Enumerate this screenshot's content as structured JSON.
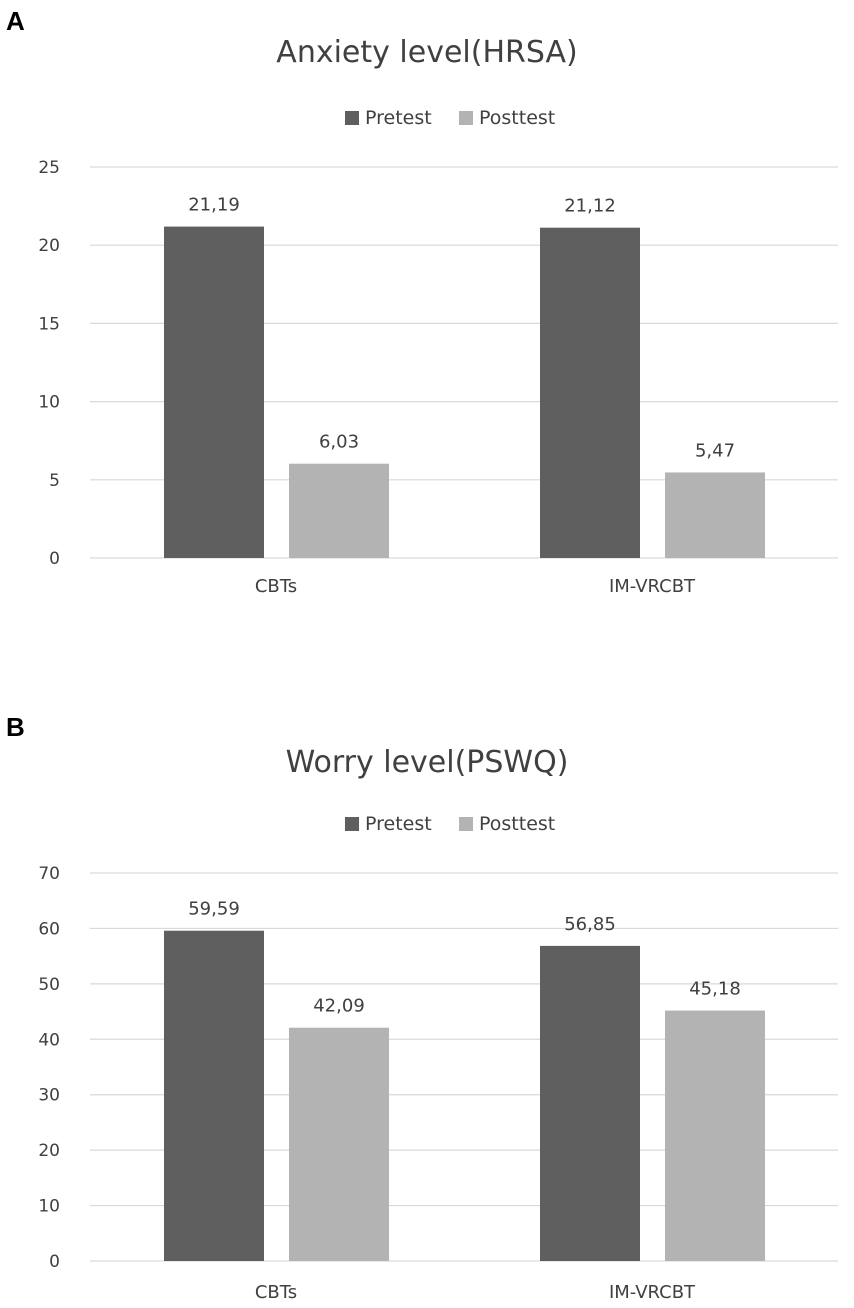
{
  "panels": [
    {
      "label": "A"
    },
    {
      "label": "B"
    }
  ],
  "colors": {
    "pretest": "#5f5f5f",
    "posttest": "#b3b3b3",
    "grid": "#d9d9d9",
    "text": "#404040"
  },
  "chart_data": [
    {
      "type": "bar",
      "title": "Anxiety level(HRSA)",
      "categories": [
        "CBTs",
        "IM-VRCBT"
      ],
      "series": [
        {
          "name": "Pretest",
          "values": [
            21.19,
            21.12
          ],
          "labels": [
            "21,19",
            "21,12"
          ]
        },
        {
          "name": "Posttest",
          "values": [
            6.03,
            5.47
          ],
          "labels": [
            "6,03",
            "5,47"
          ]
        }
      ],
      "ylim": [
        0,
        25
      ],
      "yticks": [
        0,
        5,
        10,
        15,
        20,
        25
      ],
      "legend": "top-center",
      "grid": true,
      "xlabel": "",
      "ylabel": ""
    },
    {
      "type": "bar",
      "title": "Worry level(PSWQ)",
      "categories": [
        "CBTs",
        "IM-VRCBT"
      ],
      "series": [
        {
          "name": "Pretest",
          "values": [
            59.59,
            56.85
          ],
          "labels": [
            "59,59",
            "56,85"
          ]
        },
        {
          "name": "Posttest",
          "values": [
            42.09,
            45.18
          ],
          "labels": [
            "42,09",
            "45,18"
          ]
        }
      ],
      "ylim": [
        0,
        70
      ],
      "yticks": [
        0,
        10,
        20,
        30,
        40,
        50,
        60,
        70
      ],
      "legend": "top-center",
      "grid": true,
      "xlabel": "",
      "ylabel": ""
    }
  ]
}
